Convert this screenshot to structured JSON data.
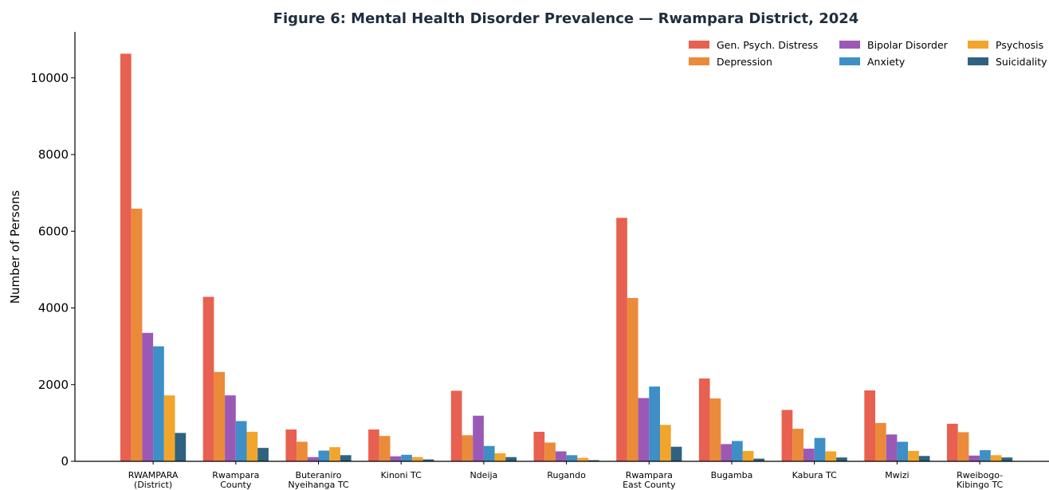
{
  "chart_data": {
    "type": "bar",
    "title": "Figure 6: Mental Health Disorder Prevalence — Rwampara District, 2024",
    "xlabel": "",
    "ylabel": "Number of Persons",
    "ylim": [
      0,
      11200
    ],
    "yticks": [
      0,
      2000,
      4000,
      6000,
      8000,
      10000
    ],
    "grid": false,
    "legend_position": "top-right",
    "categories": [
      [
        "RWAMPARA",
        "(District)"
      ],
      [
        "Rwampara",
        "County"
      ],
      [
        "Buteraniro",
        "Nyeihanga TC"
      ],
      [
        "Kinoni TC"
      ],
      [
        "Ndeija"
      ],
      [
        "Rugando"
      ],
      [
        "Rwampara",
        "East County"
      ],
      [
        "Bugamba"
      ],
      [
        "Kabura TC"
      ],
      [
        "Mwizi"
      ],
      [
        "Rweibogo-",
        "Kibingo TC"
      ]
    ],
    "series": [
      {
        "name": "Gen. Psych. Distress",
        "color": "#e8604f",
        "values": [
          10630,
          4290,
          830,
          830,
          1840,
          770,
          6350,
          2160,
          1340,
          1850,
          980
        ]
      },
      {
        "name": "Depression",
        "color": "#eb8b3a",
        "values": [
          6590,
          2330,
          510,
          660,
          680,
          490,
          4260,
          1640,
          850,
          1000,
          760
        ]
      },
      {
        "name": "Bipolar Disorder",
        "color": "#9b59b6",
        "values": [
          3350,
          1720,
          110,
          130,
          1190,
          260,
          1650,
          450,
          330,
          700,
          150
        ]
      },
      {
        "name": "Anxiety",
        "color": "#3d8fc6",
        "values": [
          3000,
          1050,
          280,
          170,
          400,
          160,
          1950,
          530,
          610,
          510,
          290
        ]
      },
      {
        "name": "Psychosis",
        "color": "#f2a52b",
        "values": [
          1720,
          770,
          370,
          110,
          210,
          90,
          950,
          270,
          260,
          270,
          160
        ]
      },
      {
        "name": "Suicidality",
        "color": "#2e6280",
        "values": [
          740,
          350,
          160,
          50,
          110,
          30,
          380,
          70,
          100,
          140,
          100
        ]
      }
    ]
  }
}
